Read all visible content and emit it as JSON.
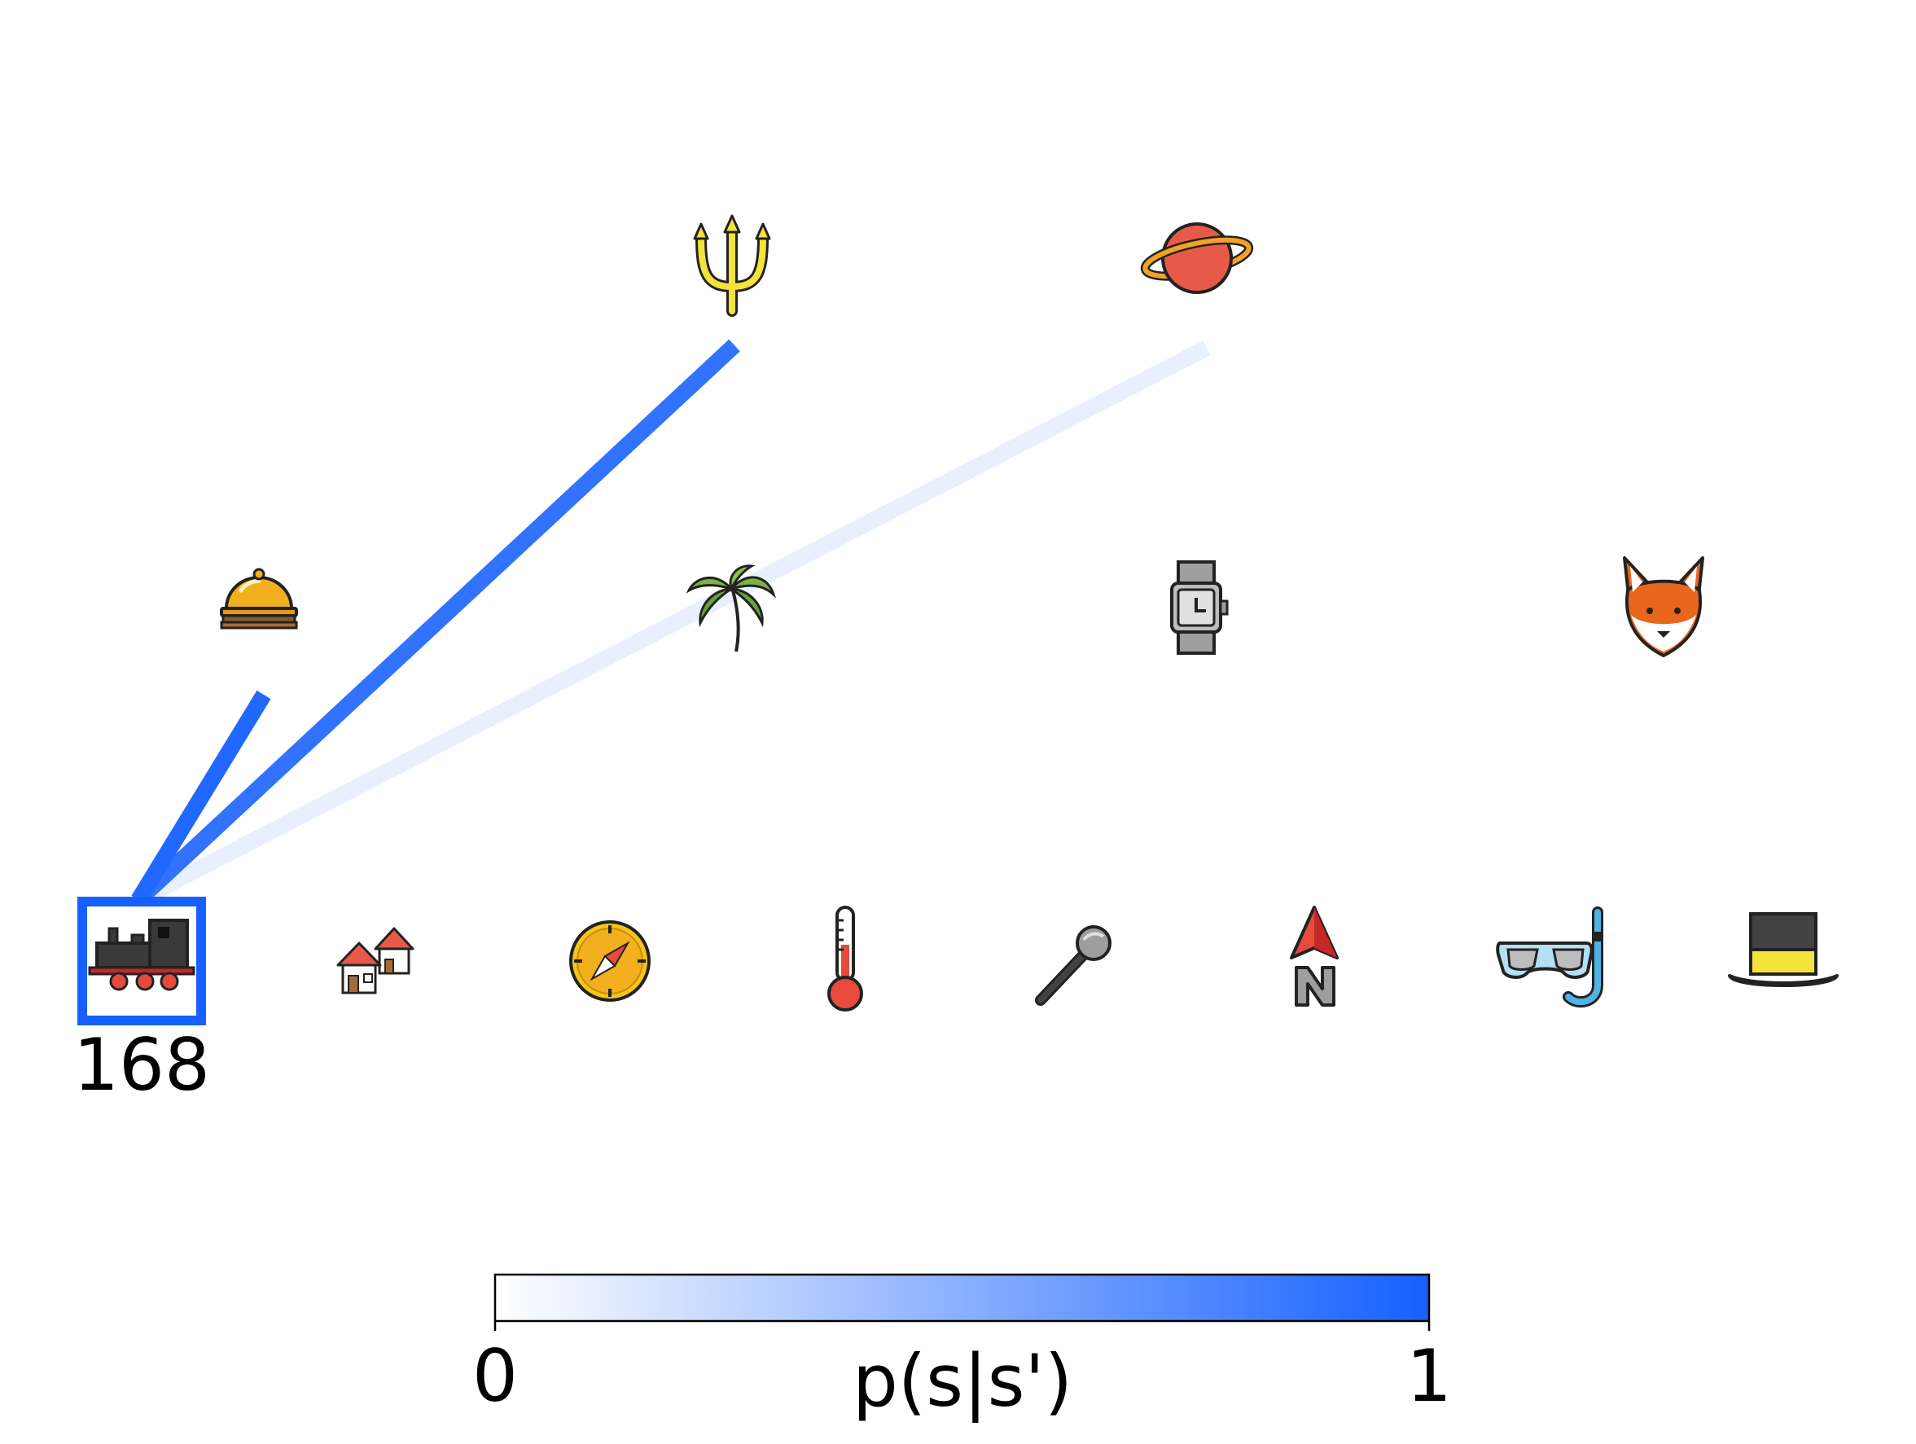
{
  "diagram": {
    "selected_state": {
      "label": "168",
      "icon": "locomotive-icon",
      "highlight_color": "#1560ff"
    },
    "transitions": [
      {
        "from": "locomotive",
        "to": "service-bell",
        "p": 0.95
      },
      {
        "from": "locomotive",
        "to": "trident",
        "p": 0.88
      },
      {
        "from": "locomotive",
        "to": "planet",
        "p": 0.1
      }
    ],
    "rows": [
      [
        "trident-icon",
        "planet-icon"
      ],
      [
        "service-bell-icon",
        "palm-tree-icon",
        "watch-icon",
        "fox-icon"
      ],
      [
        "locomotive-icon",
        "houses-icon",
        "compass-icon",
        "thermometer-icon",
        "microphone-icon",
        "north-arrow-icon",
        "snorkel-mask-icon",
        "top-hat-icon"
      ]
    ]
  },
  "colorbar": {
    "label": "p(s|s')",
    "min_label": "0",
    "max_label": "1",
    "color_low": "#ffffff",
    "color_high": "#1560ff"
  }
}
